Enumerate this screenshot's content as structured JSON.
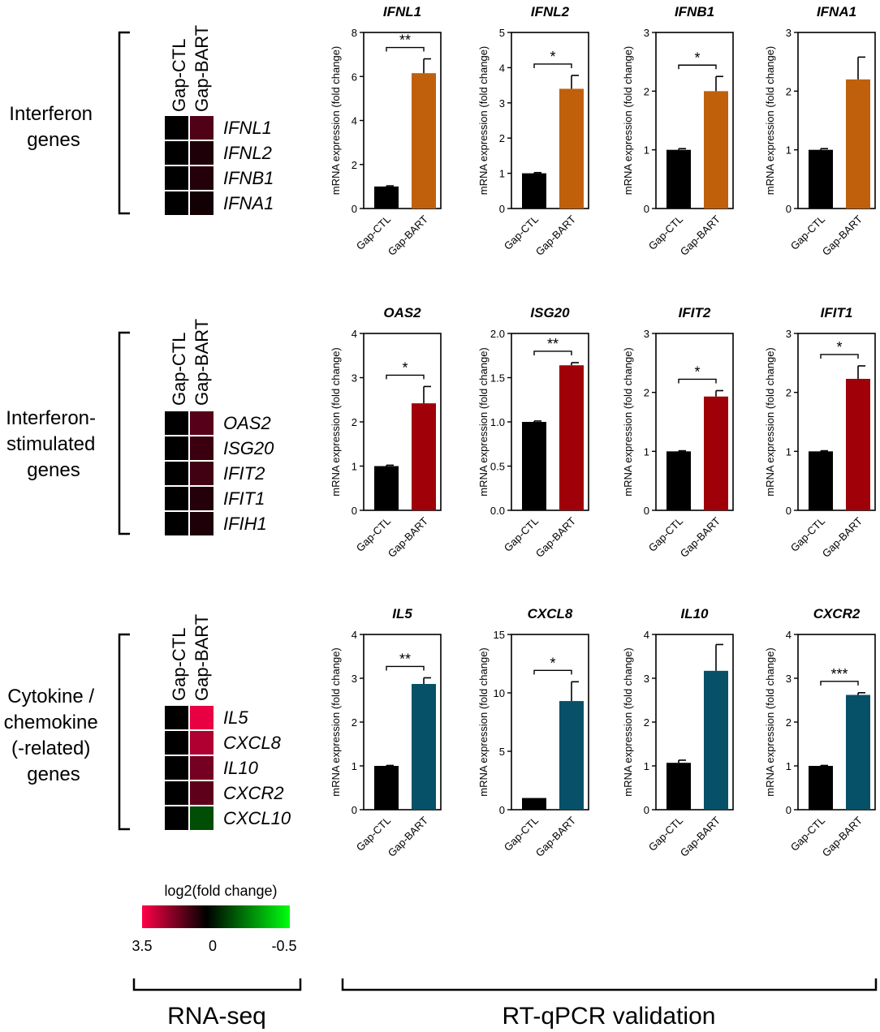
{
  "conditions": [
    "Gap-CTL",
    "Gap-BART"
  ],
  "y_axis_label": "mRNA expression (fold change)",
  "colors": {
    "ctl": "#000000",
    "interferon": "#c0600c",
    "isg": "#a00008",
    "cytokine": "#065068",
    "scale_low": "#ff0048",
    "scale_mid": "#000000",
    "scale_high": "#00ff10"
  },
  "groups": [
    {
      "label_lines": [
        "Interferon",
        "genes"
      ],
      "genes": [
        "IFNL1",
        "IFNL2",
        "IFNB1",
        "IFNA1"
      ],
      "heat_values": [
        [
          0,
          1.1
        ],
        [
          0,
          0.4
        ],
        [
          0,
          0.5
        ],
        [
          0,
          0.25
        ]
      ]
    },
    {
      "label_lines": [
        "Interferon-",
        "stimulated",
        "genes"
      ],
      "genes": [
        "OAS2",
        "ISG20",
        "IFIT2",
        "IFIT1",
        "IFIH1"
      ],
      "heat_values": [
        [
          0,
          1.2
        ],
        [
          0,
          0.8
        ],
        [
          0,
          0.9
        ],
        [
          0,
          0.5
        ],
        [
          0,
          0.4
        ]
      ]
    },
    {
      "label_lines": [
        "Cytokine /",
        "chemokine",
        "(-related)",
        "genes"
      ],
      "genes": [
        "IL5",
        "CXCL8",
        "IL10",
        "CXCR2",
        "CXCL10"
      ],
      "heat_values": [
        [
          0,
          3.2
        ],
        [
          0,
          2.4
        ],
        [
          0,
          1.6
        ],
        [
          0,
          1.3
        ],
        [
          0,
          -0.15
        ]
      ]
    }
  ],
  "colorbar": {
    "title": "log2(fold change)",
    "ticks": [
      "3.5",
      "0",
      "-0.5"
    ],
    "min": -0.5,
    "mid": 0,
    "max": 3.5
  },
  "bottom_labels": {
    "left": "RNA-seq",
    "right": "RT-qPCR validation"
  },
  "chart_data": [
    {
      "type": "bar",
      "title": "IFNL1",
      "categories": [
        "Gap-CTL",
        "Gap-BART"
      ],
      "values": [
        1.0,
        6.15
      ],
      "errors": [
        0.03,
        0.65
      ],
      "ylim": [
        0,
        8
      ],
      "yticks": [
        "0",
        "2",
        "4",
        "6",
        "8"
      ],
      "ylabel": "mRNA expression (fold change)",
      "significance": "**",
      "color_key": "interferon"
    },
    {
      "type": "bar",
      "title": "IFNL2",
      "categories": [
        "Gap-CTL",
        "Gap-BART"
      ],
      "values": [
        1.0,
        3.4
      ],
      "errors": [
        0.02,
        0.38
      ],
      "ylim": [
        0,
        5
      ],
      "yticks": [
        "0",
        "1",
        "2",
        "3",
        "4",
        "5"
      ],
      "ylabel": "mRNA expression (fold change)",
      "significance": "*",
      "color_key": "interferon"
    },
    {
      "type": "bar",
      "title": "IFNB1",
      "categories": [
        "Gap-CTL",
        "Gap-BART"
      ],
      "values": [
        1.0,
        2.0
      ],
      "errors": [
        0.02,
        0.25
      ],
      "ylim": [
        0,
        3
      ],
      "yticks": [
        "0",
        "1",
        "2",
        "3"
      ],
      "ylabel": "mRNA expression (fold change)",
      "significance": "*",
      "color_key": "interferon"
    },
    {
      "type": "bar",
      "title": "IFNA1",
      "categories": [
        "Gap-CTL",
        "Gap-BART"
      ],
      "values": [
        1.0,
        2.2
      ],
      "errors": [
        0.02,
        0.38
      ],
      "ylim": [
        0,
        3
      ],
      "yticks": [
        "0",
        "1",
        "2",
        "3"
      ],
      "ylabel": "mRNA expression (fold change)",
      "significance": "",
      "color_key": "interferon"
    },
    {
      "type": "bar",
      "title": "OAS2",
      "categories": [
        "Gap-CTL",
        "Gap-BART"
      ],
      "values": [
        1.0,
        2.42
      ],
      "errors": [
        0.02,
        0.38
      ],
      "ylim": [
        0,
        4
      ],
      "yticks": [
        "0",
        "1",
        "2",
        "3",
        "4"
      ],
      "ylabel": "mRNA expression (fold change)",
      "significance": "*",
      "color_key": "isg"
    },
    {
      "type": "bar",
      "title": "ISG20",
      "categories": [
        "Gap-CTL",
        "Gap-BART"
      ],
      "values": [
        1.0,
        1.64
      ],
      "errors": [
        0.01,
        0.03
      ],
      "ylim": [
        0,
        2
      ],
      "yticks": [
        "0.0",
        "0.5",
        "1.0",
        "1.5",
        "2.0"
      ],
      "ylabel": "mRNA expression (fold change)",
      "significance": "**",
      "color_key": "isg"
    },
    {
      "type": "bar",
      "title": "IFIT2",
      "categories": [
        "Gap-CTL",
        "Gap-BART"
      ],
      "values": [
        1.0,
        1.93
      ],
      "errors": [
        0.01,
        0.1
      ],
      "ylim": [
        0,
        3
      ],
      "yticks": [
        "0",
        "1",
        "2",
        "3"
      ],
      "ylabel": "mRNA expression (fold change)",
      "significance": "*",
      "color_key": "isg"
    },
    {
      "type": "bar",
      "title": "IFIT1",
      "categories": [
        "Gap-CTL",
        "Gap-BART"
      ],
      "values": [
        1.0,
        2.23
      ],
      "errors": [
        0.01,
        0.22
      ],
      "ylim": [
        0,
        3
      ],
      "yticks": [
        "0",
        "1",
        "2",
        "3"
      ],
      "ylabel": "mRNA expression (fold change)",
      "significance": "*",
      "color_key": "isg"
    },
    {
      "type": "bar",
      "title": "IL5",
      "categories": [
        "Gap-CTL",
        "Gap-BART"
      ],
      "values": [
        1.0,
        2.87
      ],
      "errors": [
        0.01,
        0.14
      ],
      "ylim": [
        0,
        4
      ],
      "yticks": [
        "0",
        "1",
        "2",
        "3",
        "4"
      ],
      "ylabel": "mRNA expression (fold change)",
      "significance": "**",
      "color_key": "cytokine"
    },
    {
      "type": "bar",
      "title": "CXCL8",
      "categories": [
        "Gap-CTL",
        "Gap-BART"
      ],
      "values": [
        1.0,
        9.3
      ],
      "errors": [
        0.0,
        1.65
      ],
      "ylim": [
        0,
        15
      ],
      "yticks": [
        "0",
        "5",
        "10",
        "15"
      ],
      "ylabel": "mRNA expression (fold change)",
      "significance": "*",
      "color_key": "cytokine"
    },
    {
      "type": "bar",
      "title": "IL10",
      "categories": [
        "Gap-CTL",
        "Gap-BART"
      ],
      "values": [
        1.07,
        3.17
      ],
      "errors": [
        0.06,
        0.6
      ],
      "ylim": [
        0,
        4
      ],
      "yticks": [
        "0",
        "1",
        "2",
        "3",
        "4"
      ],
      "ylabel": "mRNA expression (fold change)",
      "significance": "",
      "color_key": "cytokine"
    },
    {
      "type": "bar",
      "title": "CXCR2",
      "categories": [
        "Gap-CTL",
        "Gap-BART"
      ],
      "values": [
        1.0,
        2.62
      ],
      "errors": [
        0.01,
        0.05
      ],
      "ylim": [
        0,
        4
      ],
      "yticks": [
        "0",
        "1",
        "2",
        "3",
        "4"
      ],
      "ylabel": "mRNA expression (fold change)",
      "significance": "***",
      "color_key": "cytokine"
    }
  ]
}
